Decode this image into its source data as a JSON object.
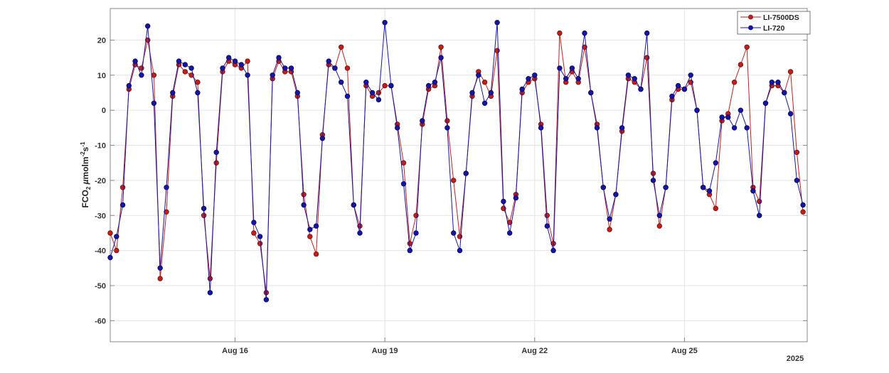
{
  "chart_data": {
    "type": "line",
    "title": "",
    "xlabel": "",
    "ylabel": {
      "main": "FCO",
      "sub": "2",
      "mu": "µ",
      "unit": "molm",
      "exp1": "-2",
      "s": "s",
      "exp2": "-1"
    },
    "x_year_label": "2025",
    "xlim": [
      "2025-08-13 12:00",
      "2025-08-27 11:00"
    ],
    "ylim": [
      -66,
      29
    ],
    "yticks": [
      -60,
      -50,
      -40,
      -30,
      -20,
      -10,
      0,
      10,
      20
    ],
    "xticks": [
      {
        "date": "2025-08-16 00:00",
        "label": "Aug 16"
      },
      {
        "date": "2025-08-19 00:00",
        "label": "Aug 19"
      },
      {
        "date": "2025-08-22 00:00",
        "label": "Aug 22"
      },
      {
        "date": "2025-08-25 00:00",
        "label": "Aug 25"
      }
    ],
    "grid": true,
    "legend_position": "top-right",
    "x": [
      "2025-08-13 12:00",
      "2025-08-13 15:00",
      "2025-08-13 18:00",
      "2025-08-13 21:00",
      "2025-08-14 00:00",
      "2025-08-14 03:00",
      "2025-08-14 06:00",
      "2025-08-14 09:00",
      "2025-08-14 12:00",
      "2025-08-14 15:00",
      "2025-08-14 18:00",
      "2025-08-14 21:00",
      "2025-08-15 00:00",
      "2025-08-15 03:00",
      "2025-08-15 06:00",
      "2025-08-15 09:00",
      "2025-08-15 12:00",
      "2025-08-15 15:00",
      "2025-08-15 18:00",
      "2025-08-15 21:00",
      "2025-08-16 00:00",
      "2025-08-16 03:00",
      "2025-08-16 06:00",
      "2025-08-16 09:00",
      "2025-08-16 12:00",
      "2025-08-16 15:00",
      "2025-08-16 18:00",
      "2025-08-16 21:00",
      "2025-08-17 00:00",
      "2025-08-17 03:00",
      "2025-08-17 06:00",
      "2025-08-17 09:00",
      "2025-08-17 12:00",
      "2025-08-17 15:00",
      "2025-08-17 18:00",
      "2025-08-17 21:00",
      "2025-08-18 00:00",
      "2025-08-18 03:00",
      "2025-08-18 06:00",
      "2025-08-18 09:00",
      "2025-08-18 12:00",
      "2025-08-18 15:00",
      "2025-08-18 18:00",
      "2025-08-18 21:00",
      "2025-08-19 00:00",
      "2025-08-19 03:00",
      "2025-08-19 06:00",
      "2025-08-19 09:00",
      "2025-08-19 12:00",
      "2025-08-19 15:00",
      "2025-08-19 18:00",
      "2025-08-19 21:00",
      "2025-08-20 00:00",
      "2025-08-20 03:00",
      "2025-08-20 06:00",
      "2025-08-20 09:00",
      "2025-08-20 12:00",
      "2025-08-20 15:00",
      "2025-08-20 18:00",
      "2025-08-20 21:00",
      "2025-08-21 00:00",
      "2025-08-21 03:00",
      "2025-08-21 06:00",
      "2025-08-21 09:00",
      "2025-08-21 12:00",
      "2025-08-21 15:00",
      "2025-08-21 18:00",
      "2025-08-21 21:00",
      "2025-08-22 00:00",
      "2025-08-22 03:00",
      "2025-08-22 06:00",
      "2025-08-22 09:00",
      "2025-08-22 12:00",
      "2025-08-22 15:00",
      "2025-08-22 18:00",
      "2025-08-22 21:00",
      "2025-08-23 00:00",
      "2025-08-23 03:00",
      "2025-08-23 06:00",
      "2025-08-23 09:00",
      "2025-08-23 12:00",
      "2025-08-23 15:00",
      "2025-08-23 18:00",
      "2025-08-23 21:00",
      "2025-08-24 00:00",
      "2025-08-24 03:00",
      "2025-08-24 06:00",
      "2025-08-24 09:00",
      "2025-08-24 12:00",
      "2025-08-24 15:00",
      "2025-08-24 18:00",
      "2025-08-24 21:00",
      "2025-08-25 00:00",
      "2025-08-25 03:00",
      "2025-08-25 06:00",
      "2025-08-25 09:00",
      "2025-08-25 12:00",
      "2025-08-25 15:00",
      "2025-08-25 18:00",
      "2025-08-25 21:00",
      "2025-08-26 00:00",
      "2025-08-26 03:00",
      "2025-08-26 06:00",
      "2025-08-26 09:00",
      "2025-08-26 12:00",
      "2025-08-26 15:00",
      "2025-08-26 18:00",
      "2025-08-26 21:00",
      "2025-08-27 00:00",
      "2025-08-27 03:00",
      "2025-08-27 06:00",
      "2025-08-27 09:00"
    ],
    "series": [
      {
        "name": "LI-7500DS",
        "color": "#c41e1a",
        "values": [
          -35,
          -40,
          -22,
          6,
          13,
          12,
          20,
          10,
          -48,
          -29,
          4,
          13,
          11,
          10,
          8,
          -30,
          -48,
          -15,
          11,
          14,
          13,
          12,
          14,
          -35,
          -38,
          -52,
          9,
          14,
          11,
          11,
          4,
          -24,
          -36,
          -41,
          -7,
          13,
          12,
          18,
          12,
          -27,
          -33,
          7,
          4,
          5,
          7,
          7,
          -4,
          -15,
          -38,
          -30,
          -4,
          6,
          7,
          18,
          -3,
          -20,
          -36,
          -18,
          4,
          11,
          8,
          4,
          17,
          -28,
          -32,
          -24,
          5,
          8,
          9,
          -4,
          -30,
          -38,
          22,
          8,
          11,
          8,
          18,
          5,
          -4,
          -22,
          -34,
          -24,
          -6,
          9,
          8,
          6,
          15,
          -18,
          -33,
          -22,
          3,
          6,
          6,
          8,
          0,
          -22,
          -24,
          -28,
          -3,
          -1,
          8,
          13,
          18,
          -22,
          -26,
          2,
          7,
          7,
          5,
          11,
          -12,
          -29
        ]
      },
      {
        "name": "LI-720",
        "color": "#1515a8",
        "values": [
          -42,
          -36,
          -27,
          7,
          14,
          10,
          24,
          2,
          -45,
          -22,
          5,
          14,
          13,
          12,
          5,
          -28,
          -52,
          -12,
          12,
          15,
          14,
          13,
          10,
          -32,
          -36,
          -54,
          10,
          15,
          12,
          12,
          5,
          -27,
          -34,
          -33,
          -8,
          14,
          12,
          8,
          4,
          -27,
          -35,
          8,
          5,
          3,
          25,
          7,
          -5,
          -21,
          -40,
          -35,
          -3,
          7,
          8,
          15,
          -5,
          -35,
          -40,
          -18,
          5,
          10,
          2,
          5,
          25,
          -26,
          -35,
          -25,
          6,
          9,
          10,
          -5,
          -33,
          -40,
          12,
          9,
          12,
          9,
          22,
          5,
          -5,
          -22,
          -31,
          -24,
          -5,
          10,
          9,
          6,
          22,
          -20,
          -30,
          -22,
          4,
          7,
          6,
          10,
          0,
          -22,
          -23,
          -15,
          -2,
          -2,
          -5,
          0,
          -5,
          -23,
          -30,
          2,
          8,
          8,
          5,
          -1,
          -20,
          -27
        ]
      }
    ]
  }
}
